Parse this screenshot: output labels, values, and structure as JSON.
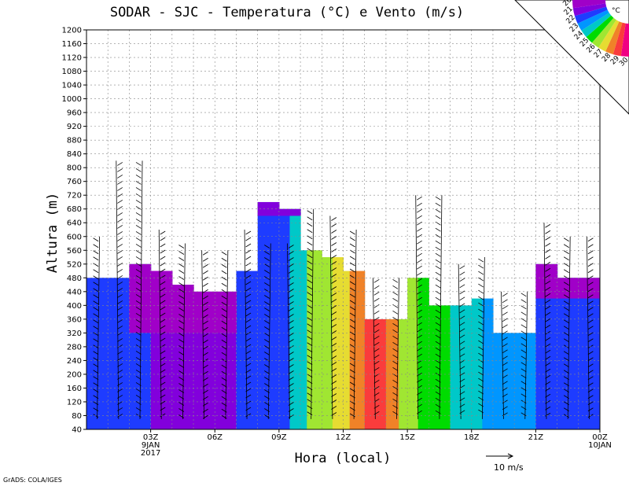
{
  "chart_data": {
    "type": "heatmap",
    "title": "SODAR - SJC - Temperatura (°C) e Vento (m/s)",
    "xlabel": "Hora (local)",
    "ylabel": "Altura (m)",
    "ylim": [
      40,
      1200
    ],
    "xlim_hours": [
      0,
      24
    ],
    "y_ticks": [
      40,
      80,
      120,
      160,
      200,
      240,
      280,
      320,
      360,
      400,
      440,
      480,
      520,
      560,
      600,
      640,
      680,
      720,
      760,
      800,
      840,
      880,
      920,
      960,
      1000,
      1040,
      1080,
      1120,
      1160,
      1200
    ],
    "x_ticks": [
      {
        "hour": 3,
        "label": "03Z",
        "sub1": "9JAN",
        "sub2": "2017"
      },
      {
        "hour": 6,
        "label": "06Z",
        "sub1": "",
        "sub2": ""
      },
      {
        "hour": 9,
        "label": "09Z",
        "sub1": "",
        "sub2": ""
      },
      {
        "hour": 12,
        "label": "12Z",
        "sub1": "",
        "sub2": ""
      },
      {
        "hour": 15,
        "label": "15Z",
        "sub1": "",
        "sub2": ""
      },
      {
        "hour": 18,
        "label": "18Z",
        "sub1": "",
        "sub2": ""
      },
      {
        "hour": 21,
        "label": "21Z",
        "sub1": "",
        "sub2": ""
      },
      {
        "hour": 24,
        "label": "00Z",
        "sub1": "10JAN",
        "sub2": ""
      }
    ],
    "colorbar": {
      "unit": "°C",
      "levels": [
        20,
        21,
        22,
        23,
        24,
        25,
        26,
        27,
        28,
        29,
        30
      ],
      "colors": [
        "#a000c8",
        "#8200dc",
        "#1e3cff",
        "#0096ff",
        "#00c8c8",
        "#00dc00",
        "#a0e632",
        "#e6dc32",
        "#f08228",
        "#fa3c3c",
        "#f00082"
      ]
    },
    "profile_top_m": [
      {
        "h0": 0.0,
        "h1": 1.0,
        "top": 480
      },
      {
        "h0": 1.0,
        "h1": 2.0,
        "top": 480
      },
      {
        "h0": 2.0,
        "h1": 3.0,
        "top": 520
      },
      {
        "h0": 3.0,
        "h1": 4.0,
        "top": 500
      },
      {
        "h0": 4.0,
        "h1": 5.0,
        "top": 460
      },
      {
        "h0": 5.0,
        "h1": 7.0,
        "top": 440
      },
      {
        "h0": 7.0,
        "h1": 8.0,
        "top": 500
      },
      {
        "h0": 8.0,
        "h1": 9.0,
        "top": 700
      },
      {
        "h0": 9.0,
        "h1": 10.0,
        "top": 680
      },
      {
        "h0": 10.0,
        "h1": 11.0,
        "top": 560
      },
      {
        "h0": 11.0,
        "h1": 12.0,
        "top": 540
      },
      {
        "h0": 12.0,
        "h1": 13.0,
        "top": 500
      },
      {
        "h0": 13.0,
        "h1": 14.0,
        "top": 360
      },
      {
        "h0": 14.0,
        "h1": 15.0,
        "top": 360
      },
      {
        "h0": 15.0,
        "h1": 16.0,
        "top": 480
      },
      {
        "h0": 16.0,
        "h1": 18.0,
        "top": 400
      },
      {
        "h0": 18.0,
        "h1": 19.0,
        "top": 420
      },
      {
        "h0": 19.0,
        "h1": 21.0,
        "top": 320
      },
      {
        "h0": 21.0,
        "h1": 22.0,
        "top": 520
      },
      {
        "h0": 22.0,
        "h1": 24.0,
        "top": 480
      }
    ],
    "temperature_columns": [
      {
        "h0": 0.0,
        "h1": 3.0,
        "temp": 22.8
      },
      {
        "h0": 3.0,
        "h1": 7.0,
        "temp": 21.2
      },
      {
        "h0": 7.0,
        "h1": 8.0,
        "temp": 22.0
      },
      {
        "h0": 8.0,
        "h1": 9.5,
        "temp": 22.6
      },
      {
        "h0": 9.5,
        "h1": 10.3,
        "temp": 24.8
      },
      {
        "h0": 10.3,
        "h1": 11.5,
        "temp": 26.5
      },
      {
        "h0": 11.5,
        "h1": 12.3,
        "temp": 27.5
      },
      {
        "h0": 12.3,
        "h1": 13.0,
        "temp": 28.3
      },
      {
        "h0": 13.0,
        "h1": 14.0,
        "temp": 29.4
      },
      {
        "h0": 14.0,
        "h1": 14.6,
        "temp": 28.7
      },
      {
        "h0": 14.6,
        "h1": 15.5,
        "temp": 26.4
      },
      {
        "h0": 15.5,
        "h1": 17.0,
        "temp": 25.2
      },
      {
        "h0": 17.0,
        "h1": 18.5,
        "temp": 24.2
      },
      {
        "h0": 18.5,
        "h1": 21.0,
        "temp": 23.0
      },
      {
        "h0": 21.0,
        "h1": 24.0,
        "temp": 22.2
      }
    ],
    "wind_scale": {
      "label": "10 m/s"
    },
    "wind_profiles_hours": [
      0.5,
      1.5,
      2.5,
      3.5,
      4.5,
      5.5,
      6.5,
      7.5,
      8.5,
      9.5,
      10.5,
      11.5,
      12.5,
      13.5,
      14.5,
      15.5,
      16.5,
      17.5,
      18.5,
      19.5,
      20.5,
      21.5,
      22.5,
      23.5
    ]
  },
  "footer": {
    "credit": "GrADS: COLA/IGES"
  }
}
